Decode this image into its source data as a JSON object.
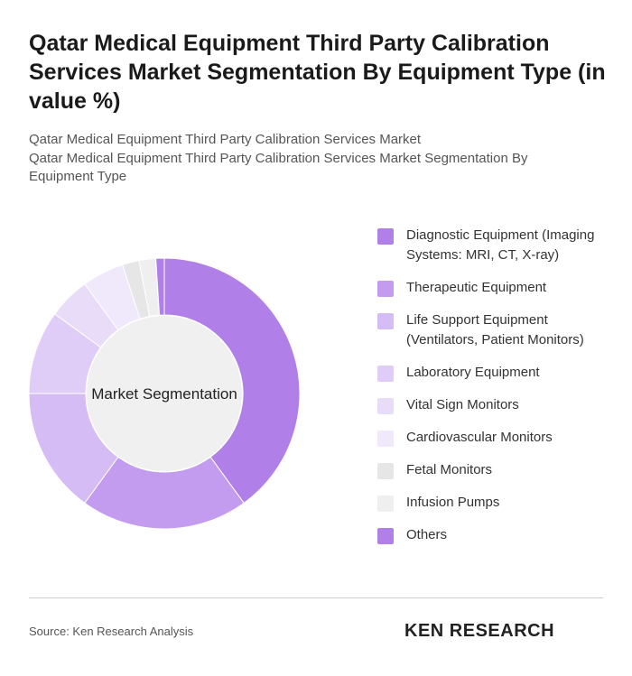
{
  "chart_data": {
    "type": "donut",
    "title": "Qatar Medical Equipment Third Party Calibration Services Market Segmentation By Equipment Type (in value %)",
    "subtitle": [
      "Qatar Medical Equipment Third Party Calibration Services Market",
      "Qatar Medical Equipment Third Party Calibration Services Market Segmentation By Equipment Type"
    ],
    "center_label": "Market Segmentation",
    "categories": [
      "Diagnostic Equipment (Imaging Systems: MRI, CT, X-ray)",
      "Therapeutic Equipment",
      "Life Support Equipment (Ventilators, Patient Monitors)",
      "Laboratory Equipment",
      "Vital Sign Monitors",
      "Cardiovascular Monitors",
      "Fetal Monitors",
      "Infusion Pumps",
      "Others"
    ],
    "values": [
      40,
      20,
      15,
      10,
      5,
      5,
      2,
      2,
      1
    ],
    "colors": [
      "#b07fe8",
      "#c39cf0",
      "#d6bcf5",
      "#e0cdf7",
      "#e8dcf9",
      "#f0e8fb",
      "#e6e6e6",
      "#efefef",
      "#b07fe8"
    ],
    "source": "Source: Ken Research Analysis",
    "logo": "KEN RESEARCH"
  }
}
